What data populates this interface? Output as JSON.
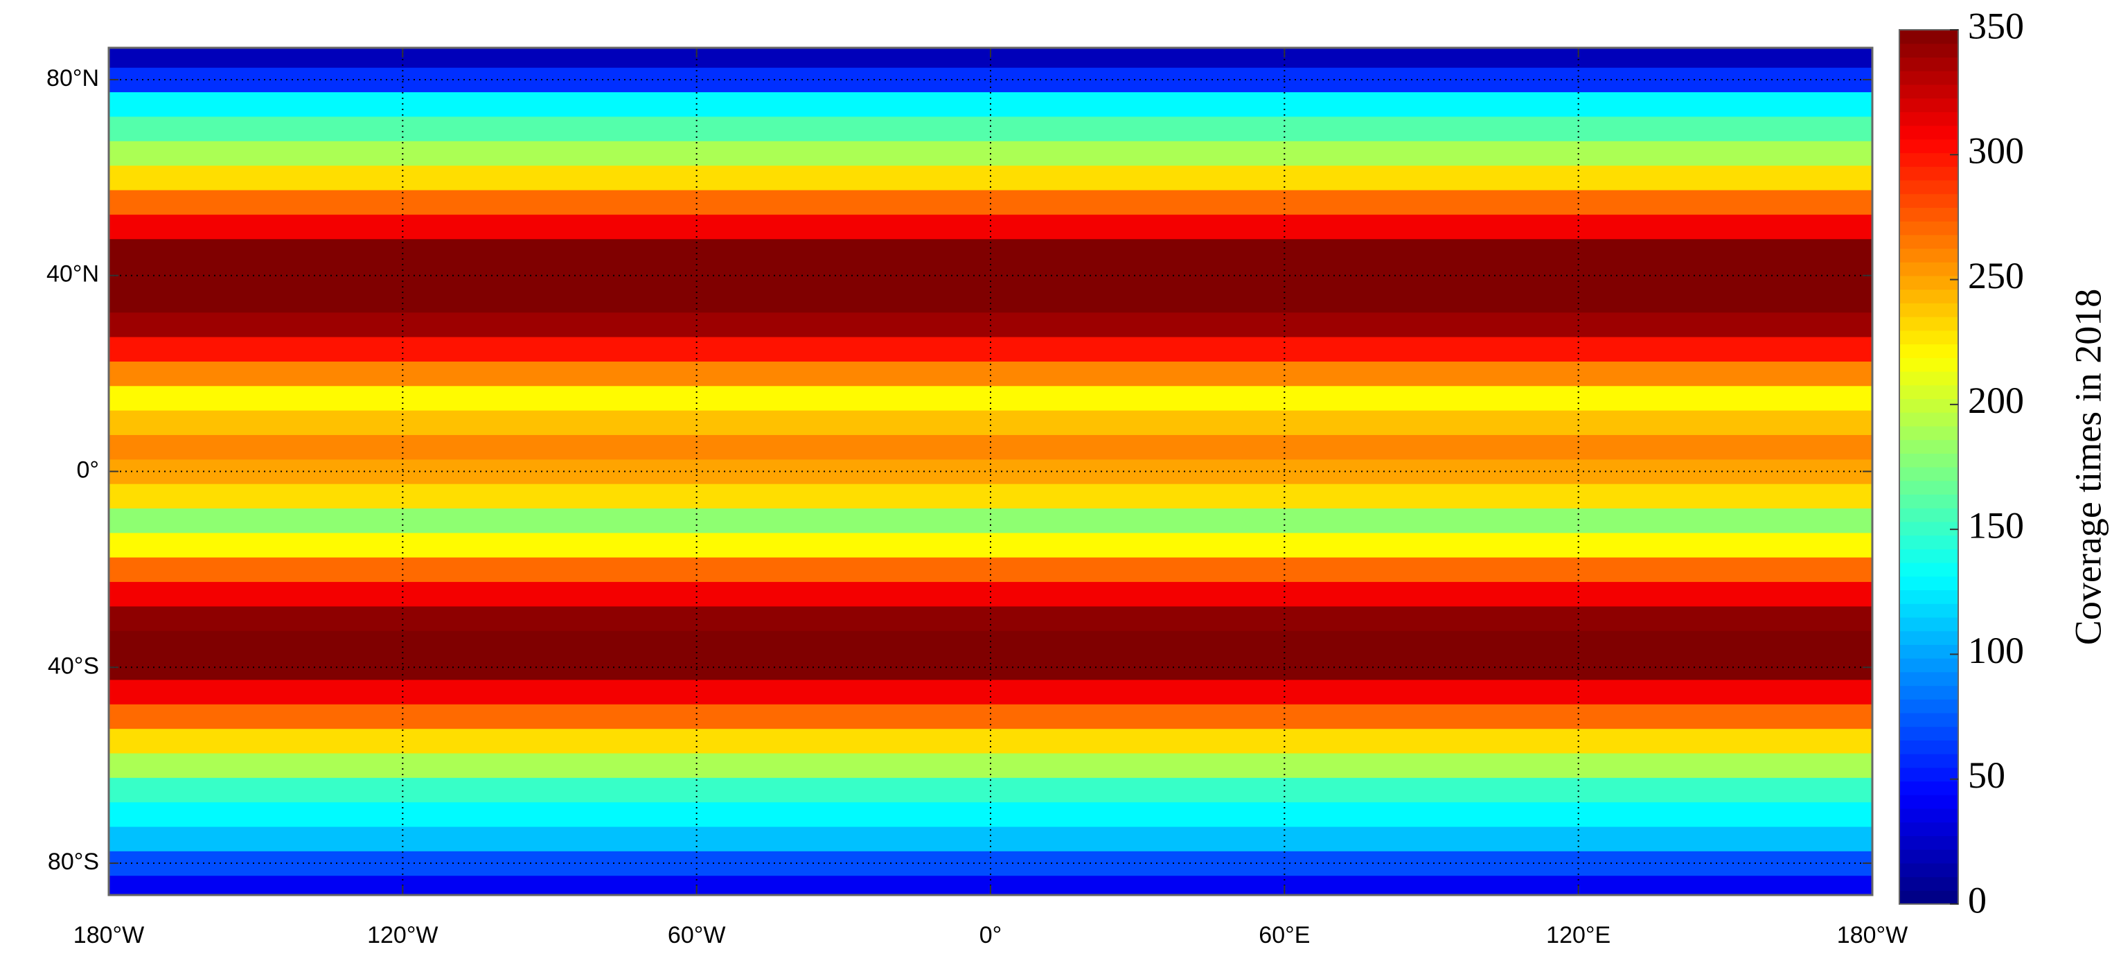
{
  "chart_data": {
    "type": "heatmap",
    "colorbar_label": "Coverage times in 2018",
    "colormap": "jet",
    "grid": true,
    "y": [
      -85,
      -80,
      -75,
      -70,
      -65,
      -60,
      -55,
      -50,
      -45,
      -40,
      -35,
      -30,
      -25,
      -20,
      -15,
      -10,
      -5,
      0,
      5,
      10,
      15,
      20,
      25,
      30,
      35,
      40,
      45,
      50,
      55,
      60,
      65,
      70,
      75,
      80,
      85
    ],
    "values": [
      40,
      70,
      110,
      130,
      150,
      190,
      230,
      270,
      310,
      350,
      350,
      345,
      310,
      270,
      220,
      180,
      230,
      250,
      260,
      240,
      220,
      260,
      300,
      340,
      350,
      350,
      350,
      310,
      270,
      230,
      190,
      160,
      130,
      60,
      20
    ],
    "xlim": [
      -180,
      180
    ],
    "xticks": [
      {
        "value": -180,
        "label": "180°W"
      },
      {
        "value": -120,
        "label": "120°W"
      },
      {
        "value": -60,
        "label": "60°W"
      },
      {
        "value": 0,
        "label": "0°"
      },
      {
        "value": 60,
        "label": "60°E"
      },
      {
        "value": 120,
        "label": "120°E"
      },
      {
        "value": 180,
        "label": "180°W"
      }
    ],
    "ylim": [
      -86.5,
      86.5
    ],
    "yticks": [
      {
        "value": -80,
        "label": "80°S"
      },
      {
        "value": -40,
        "label": "40°S"
      },
      {
        "value": 0,
        "label": "0°"
      },
      {
        "value": 40,
        "label": "40°N"
      },
      {
        "value": 80,
        "label": "80°N"
      }
    ],
    "clim": [
      0,
      350
    ],
    "cticks": [
      0,
      50,
      100,
      150,
      200,
      250,
      300,
      350
    ]
  }
}
